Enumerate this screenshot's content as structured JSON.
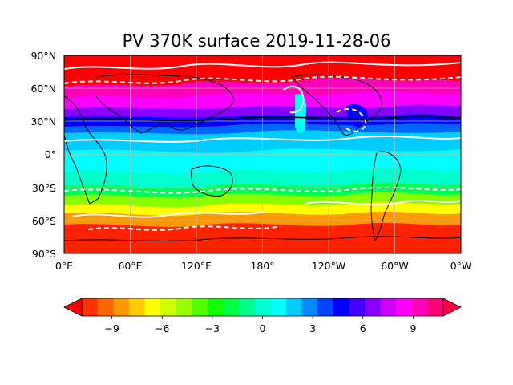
{
  "title": "PV 370K surface 2019-11-28-06",
  "map": {
    "projection": "plate-carree",
    "lat_ticks": [
      "90°N",
      "60°N",
      "30°N",
      "0°",
      "30°S",
      "60°S",
      "90°S"
    ],
    "lon_ticks": [
      "0°E",
      "60°E",
      "120°E",
      "180°",
      "120°W",
      "60°W",
      "0°W"
    ],
    "gridlines": true,
    "coastlines": true,
    "contour_overlays": [
      {
        "name": "solid-white-contours",
        "color": "#ffffff",
        "style": "solid"
      },
      {
        "name": "dashed-white-contours",
        "color": "#ffffff",
        "style": "dashed"
      },
      {
        "name": "black-contour",
        "color": "#000000",
        "style": "solid"
      }
    ]
  },
  "colorbar": {
    "orientation": "horizontal",
    "extend": "both",
    "tick_labels": [
      "−9",
      "−6",
      "−3",
      "0",
      "3",
      "6",
      "9"
    ],
    "tick_values": [
      -9,
      -6,
      -3,
      0,
      3,
      6,
      9
    ],
    "vmin": -12,
    "vmax": 12,
    "step": 1.2,
    "colors": [
      "#ff0000",
      "#ff3300",
      "#ff6600",
      "#ff9900",
      "#ffcc00",
      "#ffff00",
      "#ccff00",
      "#99ff00",
      "#55ff00",
      "#11ff00",
      "#00ff44",
      "#00ff88",
      "#00ffcc",
      "#00ffff",
      "#00ccff",
      "#0088ff",
      "#0044ff",
      "#0000ff",
      "#4400ff",
      "#8800ff",
      "#cc00ff",
      "#ff00ff",
      "#ff00bb",
      "#ff0077",
      "#ff0044"
    ]
  }
}
